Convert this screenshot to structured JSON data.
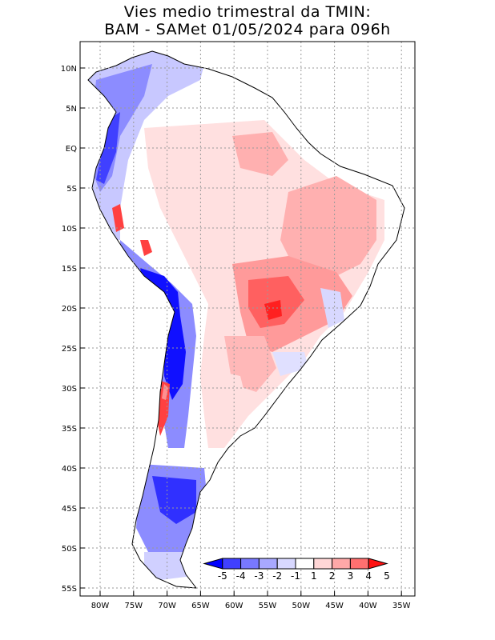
{
  "title": {
    "line1": "Vies medio trimestral da TMIN:",
    "line2": "BAM - SAMet 01/05/2024  para 096h"
  },
  "lat_labels": [
    "10N",
    "5N",
    "EQ",
    "5S",
    "10S",
    "15S",
    "20S",
    "25S",
    "30S",
    "35S",
    "40S",
    "45S",
    "50S",
    "55S"
  ],
  "lon_labels": [
    "80W",
    "75W",
    "70W",
    "65W",
    "60W",
    "55W",
    "50W",
    "45W",
    "40W",
    "35W"
  ],
  "colorbar": {
    "labels": [
      "-5",
      "-4",
      "-3",
      "-2",
      "-1",
      "1",
      "2",
      "3",
      "4",
      "5"
    ],
    "colors": [
      "#0000ff",
      "#4040ff",
      "#7878ff",
      "#a8a8ff",
      "#d8d8ff",
      "#ffffff",
      "#ffd6d6",
      "#ffa8a8",
      "#ff7070",
      "#ff1010"
    ]
  },
  "colors": {
    "frame": "#000000",
    "grid": "#9a9a9a",
    "land_neutral": "#ffffff",
    "warm_light": "#ffd6d6",
    "warm_mid": "#ffa8a8",
    "warm_strong": "#ff5050",
    "cold_light": "#c8c8ff",
    "cold_mid": "#7070ff",
    "cold_strong": "#0000ff"
  }
}
